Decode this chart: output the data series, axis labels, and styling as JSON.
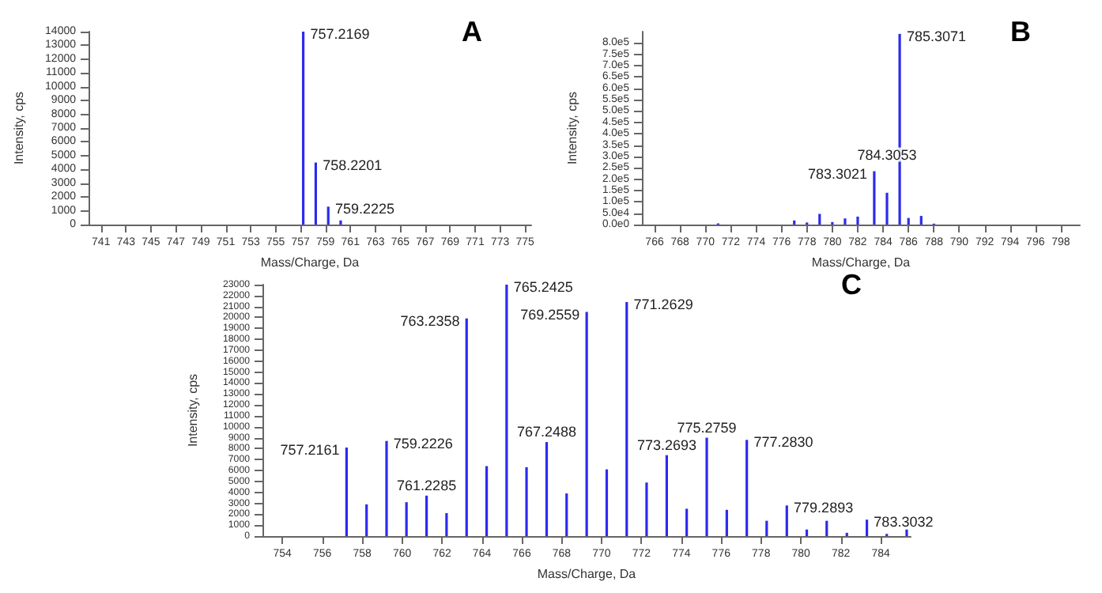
{
  "chart_data": [
    {
      "type": "bar",
      "title": "A",
      "xlabel": "Mass/Charge, Da",
      "ylabel": "Intensity, cps",
      "color": "#2b2bf0",
      "x": [
        757.2169,
        758.2201,
        759.2225,
        760.22
      ],
      "values": [
        14000,
        4500,
        1300,
        300
      ],
      "annotations": [
        {
          "text": "757.2169",
          "x": 757.2169,
          "y": 14000
        },
        {
          "text": "758.2201",
          "x": 758.2201,
          "y": 4500
        },
        {
          "text": "759.2225",
          "x": 759.2225,
          "y": 1300
        }
      ],
      "xlim": [
        740,
        775.5
      ],
      "xticks": [
        741,
        743,
        745,
        747,
        749,
        751,
        753,
        755,
        757,
        759,
        761,
        763,
        765,
        767,
        769,
        771,
        773,
        775
      ],
      "ylim": [
        0,
        14000
      ],
      "yticks": [
        0,
        1000,
        2000,
        3000,
        4000,
        5000,
        6000,
        7000,
        8000,
        9000,
        10000,
        11000,
        12000,
        13000,
        14000
      ]
    },
    {
      "type": "bar",
      "title": "B",
      "xlabel": "Mass/Charge, Da",
      "ylabel": "Intensity, cps",
      "color": "#2b2bf0",
      "x": [
        771,
        777,
        778,
        779,
        780,
        781,
        782,
        783.3021,
        784.3053,
        785.3071,
        786,
        787,
        788
      ],
      "values": [
        5000,
        18000,
        9000,
        47000,
        11000,
        27000,
        35000,
        235000,
        140000,
        840000,
        29000,
        38000,
        4000
      ],
      "annotations": [
        {
          "text": "783.3021",
          "x": 783.3021,
          "y": 235000
        },
        {
          "text": "784.3053",
          "x": 784.3053,
          "y": 140000
        },
        {
          "text": "785.3071",
          "x": 785.3071,
          "y": 840000
        }
      ],
      "xlim": [
        765,
        799.5
      ],
      "xticks": [
        766,
        768,
        770,
        772,
        774,
        776,
        778,
        780,
        782,
        784,
        786,
        788,
        790,
        792,
        794,
        796,
        798
      ],
      "ylim": [
        0,
        850000
      ],
      "yticks": [
        {
          "value": 0,
          "label": "0.0e0"
        },
        {
          "value": 50000,
          "label": "5.0e4"
        },
        {
          "value": 100000,
          "label": "1.0e5"
        },
        {
          "value": 150000,
          "label": "1.5e5"
        },
        {
          "value": 200000,
          "label": "2.0e5"
        },
        {
          "value": 250000,
          "label": "2.5e5"
        },
        {
          "value": 300000,
          "label": "3.0e5"
        },
        {
          "value": 350000,
          "label": "3.5e5"
        },
        {
          "value": 400000,
          "label": "4.0e5"
        },
        {
          "value": 450000,
          "label": "4.5e5"
        },
        {
          "value": 500000,
          "label": "5.0e5"
        },
        {
          "value": 550000,
          "label": "5.5e5"
        },
        {
          "value": 600000,
          "label": "6.0e5"
        },
        {
          "value": 650000,
          "label": "6.5e5"
        },
        {
          "value": 700000,
          "label": "7.0e5"
        },
        {
          "value": 750000,
          "label": "7.5e5"
        },
        {
          "value": 800000,
          "label": "8.0e5"
        }
      ]
    },
    {
      "type": "bar",
      "title": "C",
      "xlabel": "Mass/Charge, Da",
      "ylabel": "Intensity, cps",
      "color": "#2b2bf0",
      "x": [
        757.2161,
        758.22,
        759.2226,
        760.22,
        761.2285,
        762.23,
        763.2358,
        764.24,
        765.2425,
        766.24,
        767.2488,
        768.25,
        769.2559,
        770.26,
        771.2629,
        772.26,
        773.2693,
        774.27,
        775.2759,
        776.28,
        777.283,
        778.28,
        779.2893,
        780.29,
        781.29,
        782.3,
        783.3032,
        784.3,
        785.3
      ],
      "values": [
        8100,
        2900,
        8700,
        3100,
        3700,
        2100,
        19900,
        6400,
        23000,
        6300,
        8600,
        3900,
        20500,
        6100,
        21400,
        4900,
        7400,
        2500,
        9000,
        2400,
        8800,
        1400,
        2800,
        600,
        1400,
        300,
        1500,
        200,
        600
      ],
      "annotations": [
        {
          "text": "757.2161",
          "x": 757.2161,
          "y": 8100
        },
        {
          "text": "759.2226",
          "x": 759.2226,
          "y": 8700
        },
        {
          "text": "761.2285",
          "x": 761.2285,
          "y": 3700
        },
        {
          "text": "763.2358",
          "x": 763.2358,
          "y": 19900
        },
        {
          "text": "765.2425",
          "x": 765.2425,
          "y": 23000
        },
        {
          "text": "767.2488",
          "x": 767.2488,
          "y": 8600
        },
        {
          "text": "769.2559",
          "x": 769.2559,
          "y": 20500
        },
        {
          "text": "771.2629",
          "x": 771.2629,
          "y": 21400
        },
        {
          "text": "773.2693",
          "x": 773.2693,
          "y": 7400
        },
        {
          "text": "775.2759",
          "x": 775.2759,
          "y": 9000
        },
        {
          "text": "777.2830",
          "x": 777.283,
          "y": 8800
        },
        {
          "text": "779.2893",
          "x": 779.2893,
          "y": 2800
        },
        {
          "text": "783.3032",
          "x": 783.3032,
          "y": 1500
        }
      ],
      "xlim": [
        753,
        785.5
      ],
      "xticks": [
        754,
        756,
        758,
        760,
        762,
        764,
        766,
        768,
        770,
        772,
        774,
        776,
        778,
        780,
        782,
        784
      ],
      "ylim": [
        0,
        23000
      ],
      "yticks": [
        0,
        1000,
        2000,
        3000,
        4000,
        5000,
        6000,
        7000,
        8000,
        9000,
        10000,
        11000,
        12000,
        13000,
        14000,
        15000,
        16000,
        17000,
        18000,
        19000,
        20000,
        21000,
        22000,
        23000
      ]
    }
  ]
}
